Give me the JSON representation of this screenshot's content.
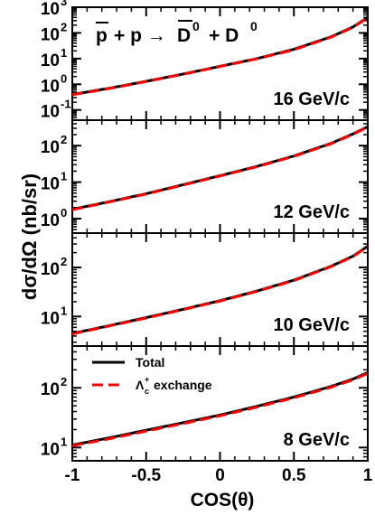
{
  "figure": {
    "ylabel": "dσ/dΩ (nb/sr)",
    "xlabel": "COS(θ)",
    "reaction": {
      "pbar": "p",
      "op1": "+ p →",
      "dbar": "D",
      "dbar_sup": "0",
      "op2": "+ D",
      "d_sup": "0"
    },
    "legend": {
      "placement": "top-left of bottom panel",
      "total": "Total",
      "exchange_symbol": "Λ",
      "exchange_sub": "c",
      "exchange_sup": "+",
      "exchange_rest": "exchange"
    },
    "colors": {
      "total": "#000000",
      "exchange": "#ff0000"
    }
  },
  "chart_data": [
    {
      "type": "line",
      "panel_label": "16 GeV/c",
      "yscale": "log",
      "xlim": [
        -1,
        1
      ],
      "ylim": [
        0.04,
        1000
      ],
      "yticks": [
        {
          "v": 0.1,
          "m": "10",
          "e": "-1"
        },
        {
          "v": 1,
          "m": "10",
          "e": "0"
        },
        {
          "v": 10,
          "m": "10",
          "e": "1"
        },
        {
          "v": 100,
          "m": "10",
          "e": "2"
        },
        {
          "v": 1000,
          "m": "10",
          "e": "3"
        }
      ],
      "x": [
        -1,
        -0.75,
        -0.5,
        -0.25,
        0,
        0.25,
        0.5,
        0.75,
        0.9,
        1
      ],
      "series": [
        {
          "name": "Total",
          "values": [
            0.4,
            0.7,
            1.3,
            2.5,
            5,
            10,
            23,
            70,
            170,
            400
          ]
        },
        {
          "name": "Λc+ exchange",
          "values": [
            0.39,
            0.68,
            1.28,
            2.45,
            4.9,
            9.8,
            22,
            68,
            165,
            390
          ]
        }
      ]
    },
    {
      "type": "line",
      "panel_label": "12 GeV/c",
      "yscale": "log",
      "xlim": [
        -1,
        1
      ],
      "ylim": [
        0.4,
        500
      ],
      "yticks": [
        {
          "v": 1,
          "m": "10",
          "e": "0"
        },
        {
          "v": 10,
          "m": "10",
          "e": "1"
        },
        {
          "v": 100,
          "m": "10",
          "e": "2"
        }
      ],
      "x": [
        -1,
        -0.75,
        -0.5,
        -0.25,
        0,
        0.25,
        0.5,
        0.75,
        0.9,
        1
      ],
      "series": [
        {
          "name": "Total",
          "values": [
            1.8,
            2.9,
            4.8,
            8.5,
            15,
            27,
            52,
            115,
            210,
            330
          ]
        },
        {
          "name": "Λc+ exchange",
          "values": [
            1.75,
            2.85,
            4.7,
            8.3,
            14.7,
            26.5,
            51,
            112,
            205,
            325
          ]
        }
      ]
    },
    {
      "type": "line",
      "panel_label": "10 GeV/c",
      "yscale": "log",
      "xlim": [
        -1,
        1
      ],
      "ylim": [
        2.5,
        500
      ],
      "yticks": [
        {
          "v": 10,
          "m": "10",
          "e": "1"
        },
        {
          "v": 100,
          "m": "10",
          "e": "2"
        }
      ],
      "x": [
        -1,
        -0.75,
        -0.5,
        -0.25,
        0,
        0.25,
        0.5,
        0.75,
        0.9,
        1
      ],
      "series": [
        {
          "name": "Total",
          "values": [
            4.5,
            6.5,
            9.5,
            14,
            21,
            33,
            55,
            105,
            170,
            270
          ]
        },
        {
          "name": "Λc+ exchange",
          "values": [
            4.4,
            6.4,
            9.3,
            13.8,
            20.6,
            32.5,
            54,
            103,
            167,
            265
          ]
        }
      ]
    },
    {
      "type": "line",
      "panel_label": "8 GeV/c",
      "yscale": "log",
      "xlim": [
        -1,
        1
      ],
      "ylim": [
        6,
        500
      ],
      "yticks": [
        {
          "v": 10,
          "m": "10",
          "e": "1"
        },
        {
          "v": 100,
          "m": "10",
          "e": "2"
        }
      ],
      "x": [
        -1,
        -0.75,
        -0.5,
        -0.25,
        0,
        0.25,
        0.5,
        0.75,
        0.9,
        1
      ],
      "series": [
        {
          "name": "Total",
          "values": [
            11,
            14.5,
            19.5,
            26,
            35,
            49,
            70,
            105,
            140,
            180
          ]
        },
        {
          "name": "Λc+ exchange",
          "values": [
            10.7,
            14,
            18.8,
            25.2,
            34,
            47.5,
            68,
            102,
            136,
            175
          ]
        }
      ]
    }
  ],
  "xaxis": {
    "ticks": [
      {
        "v": -1,
        "label": "-1"
      },
      {
        "v": -0.5,
        "label": "-0.5"
      },
      {
        "v": 0,
        "label": "0"
      },
      {
        "v": 0.5,
        "label": "0.5"
      },
      {
        "v": 1,
        "label": "1"
      }
    ]
  }
}
